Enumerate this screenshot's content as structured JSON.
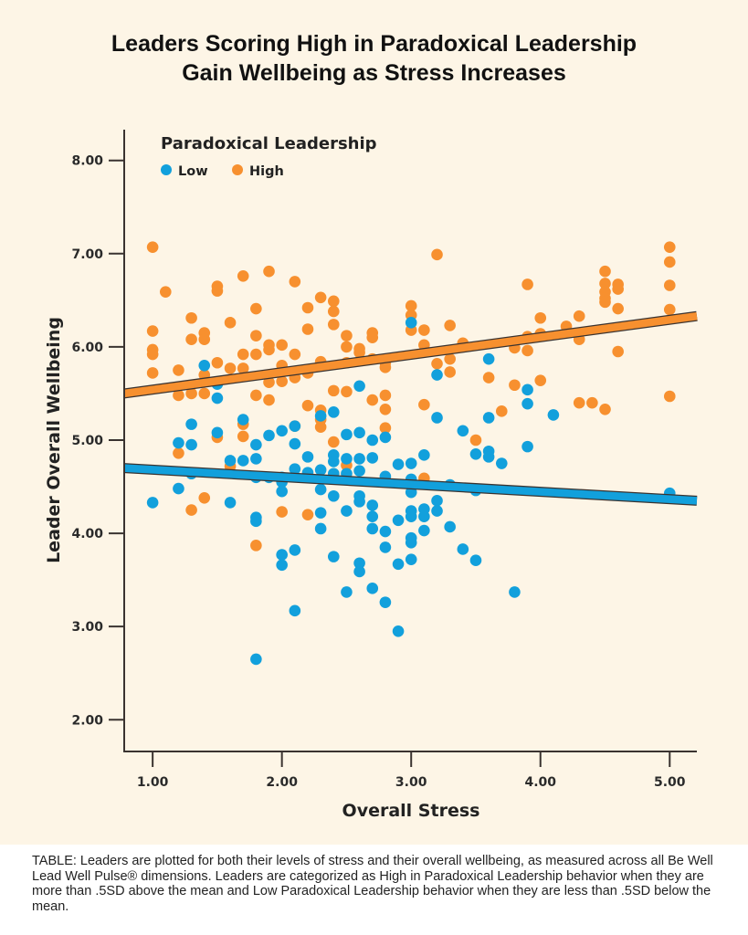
{
  "page": {
    "title_line1": "Leaders Scoring High in Paradoxical Leadership",
    "title_line2": "Gain Wellbeing as Stress Increases",
    "caption": "TABLE: Leaders are plotted for both their levels of stress and their overall wellbeing, as measured across all Be Well Lead Well Pulse® dimensions. Leaders are categorized as High in Paradoxical Leadership behavior when they are more than .5SD above the mean and Low Paradoxical Leadership behavior when they are less than .5SD below the mean."
  },
  "colors": {
    "low": "#12a0dc",
    "high": "#f7902f",
    "background": "#fdf5e6",
    "axis": "#3a3330"
  },
  "chart_data": {
    "type": "scatter",
    "title": "Leaders Scoring High in Paradoxical Leadership Gain Wellbeing as Stress Increases",
    "xlabel": "Overall Stress",
    "ylabel": "Leader Overall Wellbeing",
    "xlim": [
      0.78,
      5.21
    ],
    "ylim": [
      1.66,
      8.33
    ],
    "xticks": [
      1,
      2,
      3,
      4,
      5
    ],
    "xtick_labels": [
      "1.00",
      "2.00",
      "3.00",
      "4.00",
      "5.00"
    ],
    "yticks": [
      2,
      3,
      4,
      5,
      6,
      7,
      8
    ],
    "ytick_labels": [
      "2.00",
      "3.00",
      "4.00",
      "5.00",
      "6.00",
      "7.00",
      "8.00"
    ],
    "grid": false,
    "legend": {
      "title": "Paradoxical Leadership",
      "placement": "top-left",
      "entries": [
        "Low",
        "High"
      ]
    },
    "series": [
      {
        "name": "Low",
        "points": [
          [
            1.0,
            4.33
          ],
          [
            1.2,
            4.97
          ],
          [
            1.2,
            4.48
          ],
          [
            1.3,
            5.17
          ],
          [
            1.3,
            4.95
          ],
          [
            1.3,
            4.64
          ],
          [
            1.4,
            5.8
          ],
          [
            1.5,
            5.6
          ],
          [
            1.5,
            5.45
          ],
          [
            1.5,
            5.08
          ],
          [
            1.6,
            4.78
          ],
          [
            1.6,
            4.33
          ],
          [
            1.7,
            5.22
          ],
          [
            1.7,
            4.78
          ],
          [
            1.8,
            4.95
          ],
          [
            1.8,
            4.8
          ],
          [
            1.8,
            4.6
          ],
          [
            1.8,
            4.17
          ],
          [
            1.8,
            4.13
          ],
          [
            1.8,
            2.65
          ],
          [
            1.9,
            5.05
          ],
          [
            1.9,
            4.6
          ],
          [
            2.0,
            5.1
          ],
          [
            2.0,
            4.6
          ],
          [
            2.0,
            4.55
          ],
          [
            2.0,
            4.45
          ],
          [
            2.0,
            3.77
          ],
          [
            2.0,
            3.66
          ],
          [
            2.1,
            5.15
          ],
          [
            2.1,
            4.96
          ],
          [
            2.1,
            4.69
          ],
          [
            2.1,
            3.82
          ],
          [
            2.1,
            3.17
          ],
          [
            2.2,
            4.82
          ],
          [
            2.2,
            4.65
          ],
          [
            2.3,
            5.26
          ],
          [
            2.3,
            4.68
          ],
          [
            2.3,
            4.47
          ],
          [
            2.3,
            4.22
          ],
          [
            2.3,
            4.05
          ],
          [
            2.4,
            5.3
          ],
          [
            2.4,
            4.84
          ],
          [
            2.4,
            4.77
          ],
          [
            2.4,
            4.64
          ],
          [
            2.4,
            4.4
          ],
          [
            2.4,
            3.75
          ],
          [
            2.5,
            5.06
          ],
          [
            2.5,
            4.8
          ],
          [
            2.5,
            4.64
          ],
          [
            2.5,
            4.24
          ],
          [
            2.5,
            3.37
          ],
          [
            2.6,
            5.58
          ],
          [
            2.6,
            5.08
          ],
          [
            2.6,
            4.8
          ],
          [
            2.6,
            4.67
          ],
          [
            2.6,
            4.4
          ],
          [
            2.6,
            4.34
          ],
          [
            2.6,
            3.68
          ],
          [
            2.6,
            3.59
          ],
          [
            2.7,
            5.0
          ],
          [
            2.7,
            4.81
          ],
          [
            2.7,
            4.3
          ],
          [
            2.7,
            4.18
          ],
          [
            2.7,
            4.05
          ],
          [
            2.7,
            3.41
          ],
          [
            2.8,
            5.03
          ],
          [
            2.8,
            4.61
          ],
          [
            2.8,
            4.02
          ],
          [
            2.8,
            3.85
          ],
          [
            2.8,
            3.26
          ],
          [
            2.9,
            4.74
          ],
          [
            2.9,
            4.14
          ],
          [
            2.9,
            3.67
          ],
          [
            2.9,
            2.95
          ],
          [
            3.0,
            6.26
          ],
          [
            3.0,
            4.75
          ],
          [
            3.0,
            4.58
          ],
          [
            3.0,
            4.44
          ],
          [
            3.0,
            4.24
          ],
          [
            3.0,
            4.18
          ],
          [
            3.0,
            3.95
          ],
          [
            3.0,
            3.9
          ],
          [
            3.0,
            3.72
          ],
          [
            3.1,
            4.84
          ],
          [
            3.1,
            4.26
          ],
          [
            3.1,
            4.18
          ],
          [
            3.1,
            4.03
          ],
          [
            3.2,
            5.7
          ],
          [
            3.2,
            5.24
          ],
          [
            3.2,
            4.35
          ],
          [
            3.2,
            4.24
          ],
          [
            3.3,
            4.52
          ],
          [
            3.3,
            4.07
          ],
          [
            3.4,
            5.1
          ],
          [
            3.4,
            3.83
          ],
          [
            3.5,
            4.85
          ],
          [
            3.5,
            4.46
          ],
          [
            3.5,
            3.71
          ],
          [
            3.6,
            5.87
          ],
          [
            3.6,
            5.24
          ],
          [
            3.6,
            4.88
          ],
          [
            3.6,
            4.82
          ],
          [
            3.7,
            4.75
          ],
          [
            3.8,
            3.37
          ],
          [
            3.9,
            5.54
          ],
          [
            3.9,
            5.39
          ],
          [
            3.9,
            4.93
          ],
          [
            4.1,
            5.27
          ],
          [
            5.0,
            4.43
          ]
        ]
      },
      {
        "name": "High",
        "points": [
          [
            1.0,
            7.07
          ],
          [
            1.0,
            6.17
          ],
          [
            1.0,
            5.97
          ],
          [
            1.0,
            5.92
          ],
          [
            1.0,
            5.72
          ],
          [
            1.1,
            6.59
          ],
          [
            1.2,
            5.75
          ],
          [
            1.2,
            5.48
          ],
          [
            1.2,
            4.86
          ],
          [
            1.3,
            6.31
          ],
          [
            1.3,
            6.08
          ],
          [
            1.3,
            5.5
          ],
          [
            1.3,
            4.25
          ],
          [
            1.4,
            6.15
          ],
          [
            1.4,
            6.08
          ],
          [
            1.4,
            5.7
          ],
          [
            1.4,
            5.5
          ],
          [
            1.4,
            4.38
          ],
          [
            1.5,
            6.65
          ],
          [
            1.5,
            6.6
          ],
          [
            1.5,
            5.83
          ],
          [
            1.5,
            5.03
          ],
          [
            1.6,
            6.26
          ],
          [
            1.6,
            5.77
          ],
          [
            1.6,
            4.72
          ],
          [
            1.7,
            6.76
          ],
          [
            1.7,
            5.92
          ],
          [
            1.7,
            5.77
          ],
          [
            1.7,
            5.17
          ],
          [
            1.7,
            5.04
          ],
          [
            1.8,
            6.41
          ],
          [
            1.8,
            6.12
          ],
          [
            1.8,
            5.92
          ],
          [
            1.8,
            5.48
          ],
          [
            1.8,
            3.87
          ],
          [
            1.9,
            6.81
          ],
          [
            1.9,
            6.02
          ],
          [
            1.9,
            5.97
          ],
          [
            1.9,
            5.62
          ],
          [
            1.9,
            5.43
          ],
          [
            2.0,
            6.02
          ],
          [
            2.0,
            5.8
          ],
          [
            2.0,
            5.63
          ],
          [
            2.0,
            4.23
          ],
          [
            2.1,
            6.7
          ],
          [
            2.1,
            5.92
          ],
          [
            2.1,
            5.67
          ],
          [
            2.1,
            5.15
          ],
          [
            2.2,
            6.42
          ],
          [
            2.2,
            6.19
          ],
          [
            2.2,
            5.72
          ],
          [
            2.2,
            5.37
          ],
          [
            2.2,
            4.2
          ],
          [
            2.3,
            6.53
          ],
          [
            2.3,
            5.84
          ],
          [
            2.3,
            5.32
          ],
          [
            2.3,
            5.22
          ],
          [
            2.3,
            5.14
          ],
          [
            2.4,
            6.49
          ],
          [
            2.4,
            6.38
          ],
          [
            2.4,
            6.24
          ],
          [
            2.4,
            5.53
          ],
          [
            2.4,
            4.98
          ],
          [
            2.5,
            6.12
          ],
          [
            2.5,
            6.0
          ],
          [
            2.5,
            5.83
          ],
          [
            2.5,
            5.52
          ],
          [
            2.5,
            4.73
          ],
          [
            2.6,
            5.98
          ],
          [
            2.6,
            5.94
          ],
          [
            2.7,
            6.15
          ],
          [
            2.7,
            6.1
          ],
          [
            2.7,
            5.87
          ],
          [
            2.7,
            5.43
          ],
          [
            2.8,
            5.83
          ],
          [
            2.8,
            5.78
          ],
          [
            2.8,
            5.48
          ],
          [
            2.8,
            5.33
          ],
          [
            2.8,
            5.13
          ],
          [
            3.0,
            6.44
          ],
          [
            3.0,
            6.34
          ],
          [
            3.0,
            6.18
          ],
          [
            3.1,
            6.18
          ],
          [
            3.1,
            6.02
          ],
          [
            3.1,
            5.38
          ],
          [
            3.1,
            4.59
          ],
          [
            3.2,
            6.99
          ],
          [
            3.2,
            5.82
          ],
          [
            3.3,
            6.23
          ],
          [
            3.3,
            5.87
          ],
          [
            3.3,
            5.73
          ],
          [
            3.4,
            6.04
          ],
          [
            3.5,
            5.0
          ],
          [
            3.6,
            5.67
          ],
          [
            3.7,
            5.31
          ],
          [
            3.8,
            5.99
          ],
          [
            3.8,
            5.59
          ],
          [
            3.9,
            6.67
          ],
          [
            3.9,
            6.11
          ],
          [
            3.9,
            5.96
          ],
          [
            4.0,
            6.31
          ],
          [
            4.0,
            6.14
          ],
          [
            4.0,
            5.64
          ],
          [
            4.2,
            6.22
          ],
          [
            4.3,
            6.33
          ],
          [
            4.3,
            6.08
          ],
          [
            4.3,
            5.4
          ],
          [
            4.4,
            5.4
          ],
          [
            4.5,
            6.81
          ],
          [
            4.5,
            6.68
          ],
          [
            4.5,
            6.59
          ],
          [
            4.5,
            6.52
          ],
          [
            4.5,
            6.48
          ],
          [
            4.5,
            5.33
          ],
          [
            4.6,
            6.67
          ],
          [
            4.6,
            6.62
          ],
          [
            4.6,
            6.41
          ],
          [
            4.6,
            5.95
          ],
          [
            5.0,
            7.07
          ],
          [
            5.0,
            6.91
          ],
          [
            5.0,
            6.66
          ],
          [
            5.0,
            6.4
          ],
          [
            5.0,
            5.47
          ]
        ]
      }
    ],
    "trendlines": [
      {
        "name": "High",
        "from": [
          0.78,
          5.5
        ],
        "to": [
          5.21,
          6.33
        ]
      },
      {
        "name": "Low",
        "from": [
          0.78,
          4.7
        ],
        "to": [
          5.21,
          4.35
        ]
      }
    ]
  }
}
